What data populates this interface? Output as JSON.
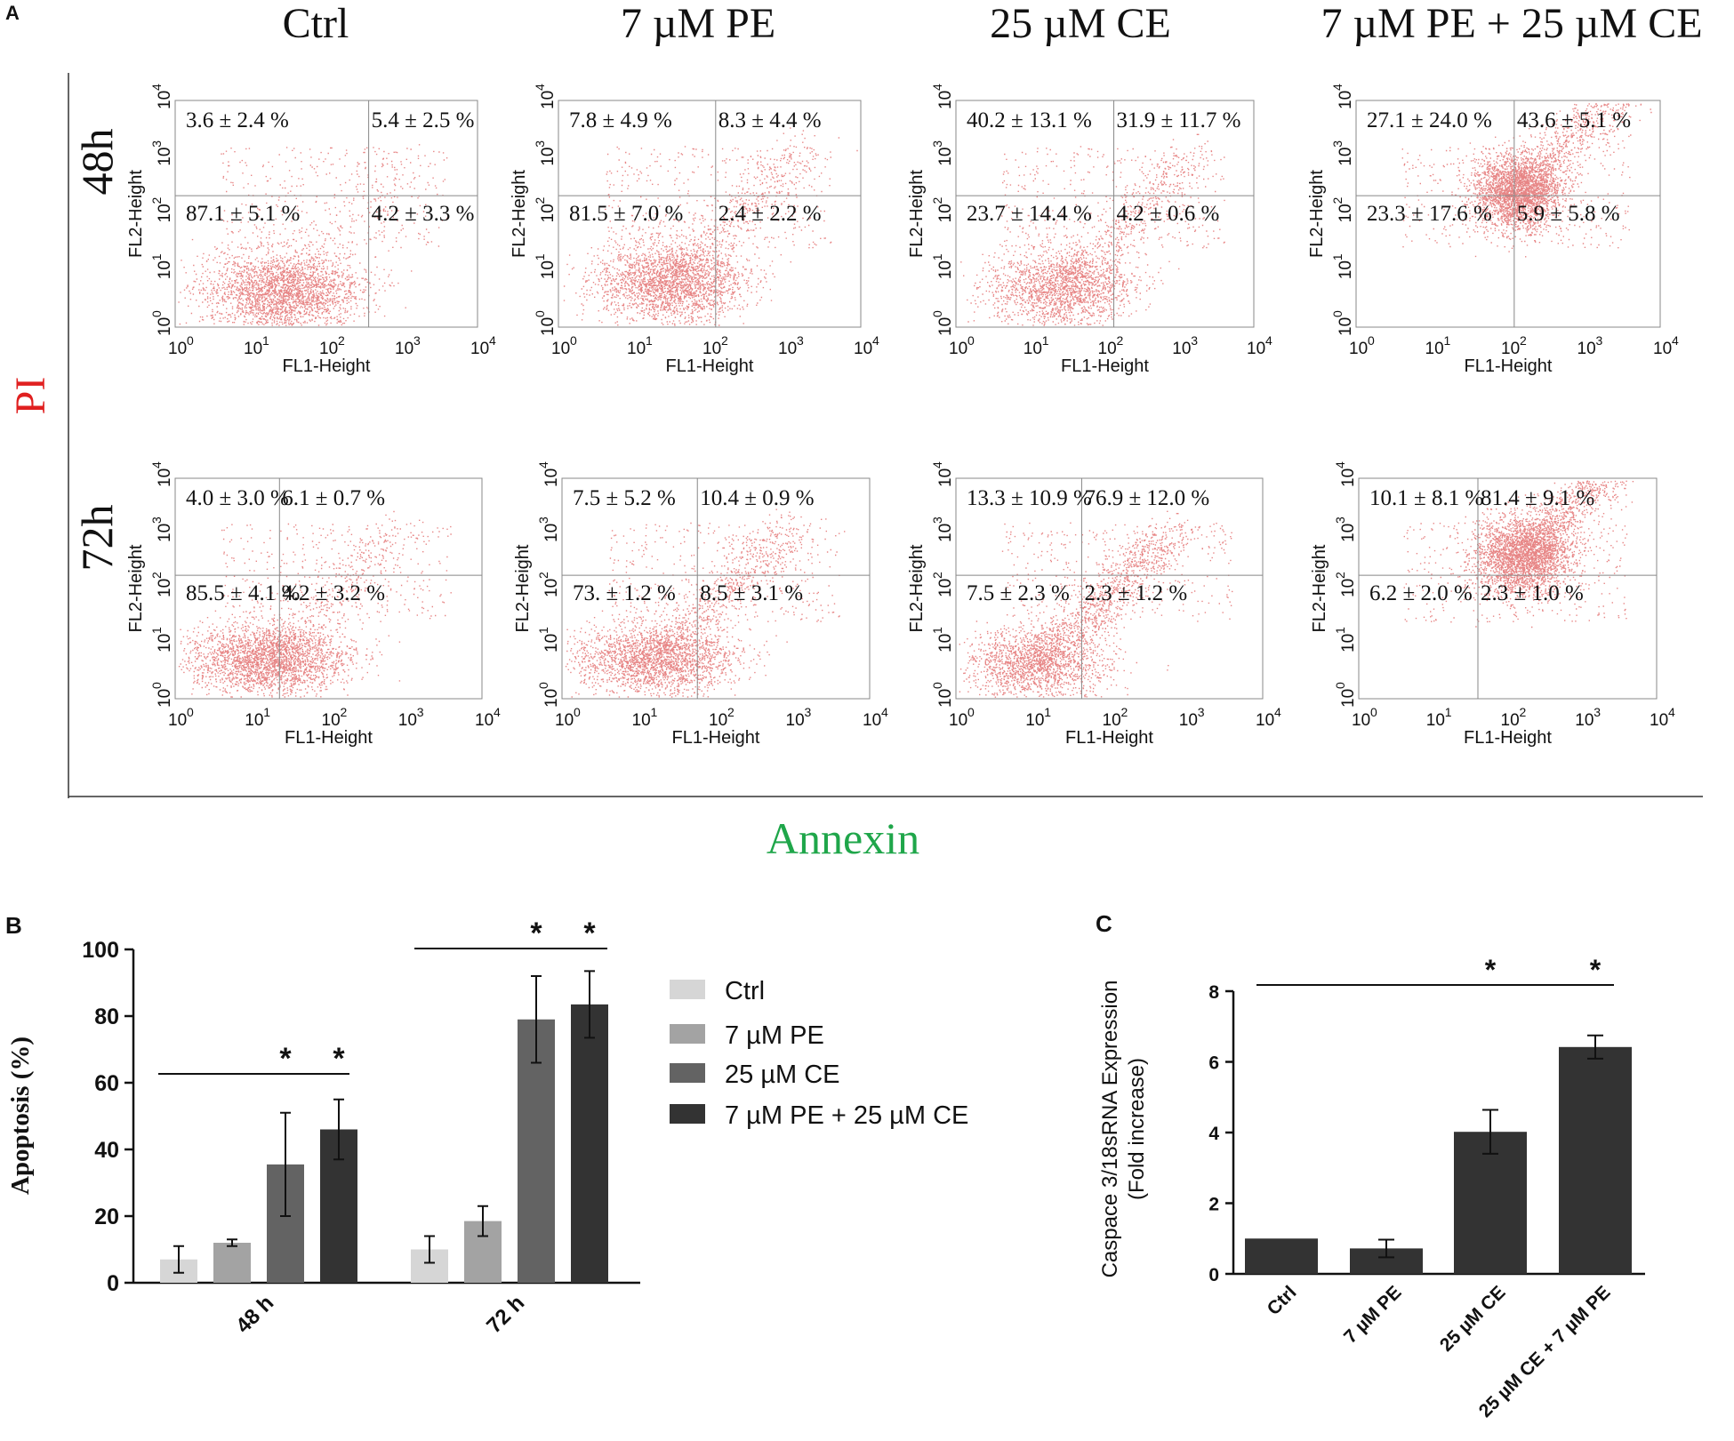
{
  "panel_a": {
    "label": "A",
    "columns": [
      "Ctrl",
      "7 µM PE",
      "25 µM CE",
      "7 µM PE + 25 µM CE"
    ],
    "rows": [
      "48h",
      "72h"
    ],
    "y_axis_title": "PI",
    "x_axis_title": "Annexin",
    "plot_xlabel": "FL1-Height",
    "plot_ylabel": "FL2-Height",
    "ticks": [
      "0",
      "1",
      "2",
      "3",
      "4"
    ],
    "colors": {
      "dots": "#d42020",
      "pi": "#e02020",
      "annexin": "#1fa64a"
    },
    "quadrants": [
      [
        {
          "ul": "3.6 ± 2.4 %",
          "ur": "5.4 ± 2.5 %",
          "ll": "87.1 ± 5.1 %",
          "lr": "4.2 ± 3.3 %"
        },
        {
          "ul": "7.8 ± 4.9 %",
          "ur": "8.3 ± 4.4 %",
          "ll": "81.5 ± 7.0 %",
          "lr": "2.4 ± 2.2 %"
        },
        {
          "ul": "40.2 ± 13.1 %",
          "ur": "31.9 ± 11.7 %",
          "ll": "23.7 ± 14.4 %",
          "lr": "4.2 ± 0.6 %"
        },
        {
          "ul": "27.1 ± 24.0 %",
          "ur": "43.6 ± 5.1 %",
          "ll": "23.3 ± 17.6 %",
          "lr": "5.9 ± 5.8 %"
        }
      ],
      [
        {
          "ul": "4.0 ± 3.0 %",
          "ur": "6.1 ± 0.7 %",
          "ll": "85.5 ± 4.1 %",
          "lr": "4.2 ± 3.2 %"
        },
        {
          "ul": "7.5 ± 5.2 %",
          "ur": "10.4 ± 0.9 %",
          "ll": "73. ± 1.2 %",
          "lr": "8.5 ± 3.1 %"
        },
        {
          "ul": "13.3 ± 10.9 %",
          "ur": "76.9 ± 12.0 %",
          "ll": "7.5 ± 2.3 %",
          "lr": "2.3 ± 1.2 %"
        },
        {
          "ul": "10.1 ± 8.1 %",
          "ur": "81.4 ± 9.1 %",
          "ll": "6.2 ± 2.0 %",
          "lr": "2.3 ± 1.0 %"
        }
      ]
    ]
  },
  "chart_data": [
    {
      "panel": "B",
      "type": "bar",
      "title": "",
      "xlabel": "",
      "ylabel": "Apoptosis (%)",
      "ylim": [
        0,
        100
      ],
      "yticks": [
        0,
        20,
        40,
        60,
        80,
        100
      ],
      "categories": [
        "48 h",
        "72 h"
      ],
      "series": [
        {
          "name": "Ctrl",
          "color": "#d6d6d6",
          "values": [
            7,
            10
          ],
          "errors": [
            4,
            4
          ]
        },
        {
          "name": "7 µM PE",
          "color": "#a3a3a3",
          "values": [
            12,
            18.5
          ],
          "errors": [
            1,
            4.5
          ]
        },
        {
          "name": "25 µM CE",
          "color": "#636363",
          "values": [
            35.5,
            79
          ],
          "errors": [
            15.5,
            13
          ]
        },
        {
          "name": "7 µM PE + 25 µM CE",
          "color": "#333333",
          "values": [
            46,
            83.5
          ],
          "errors": [
            9,
            10
          ]
        }
      ],
      "significance": [
        {
          "category": "48 h",
          "marks": [
            "*",
            "*"
          ]
        },
        {
          "category": "72 h",
          "marks": [
            "*",
            "*"
          ]
        }
      ],
      "legend": "right"
    },
    {
      "panel": "C",
      "type": "bar",
      "title": "",
      "xlabel": "",
      "ylabel": [
        "Caspace 3/18sRNA Expression",
        "(Fold increase)"
      ],
      "ylim": [
        0,
        8
      ],
      "yticks": [
        0,
        2,
        4,
        6,
        8
      ],
      "categories": [
        "Ctrl",
        "7 µM PE",
        "25 µM CE",
        "25 µM CE + 7 µM PE"
      ],
      "values": [
        1.0,
        0.72,
        4.02,
        6.42
      ],
      "errors": [
        0.0,
        0.25,
        0.62,
        0.33
      ],
      "color": "#333333",
      "significance_marks": [
        "*",
        "*"
      ]
    }
  ]
}
